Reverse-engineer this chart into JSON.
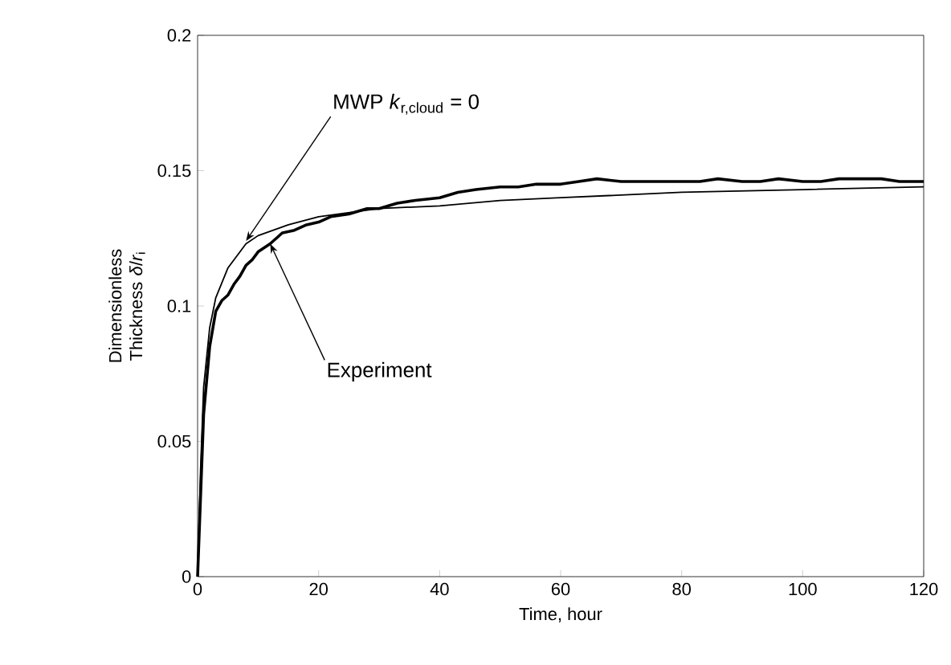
{
  "chart_data": {
    "type": "line",
    "xlabel": "Time, hour",
    "ylabel": "Dimensionless Thickness *δ*/*r*$_{i}$",
    "xlim": [
      0,
      120
    ],
    "ylim": [
      0,
      0.2
    ],
    "xticks": [
      0,
      20,
      40,
      60,
      80,
      100,
      120
    ],
    "yticks": [
      0,
      0.05,
      0.1,
      0.15,
      0.2
    ],
    "grid": false,
    "marker": "none",
    "line_style": "solid",
    "series": [
      {
        "color": "#000000",
        "x": [
          0,
          0.5,
          1,
          2,
          3,
          4,
          5,
          6,
          7,
          8,
          9,
          10,
          12,
          14,
          16,
          18,
          20,
          22,
          25,
          28,
          30,
          33,
          36,
          40,
          43,
          46,
          50,
          53,
          56,
          60,
          63,
          66,
          70,
          73,
          76,
          80,
          83,
          86,
          90,
          93,
          96,
          100,
          103,
          106,
          110,
          113,
          116,
          120
        ],
        "values": [
          0,
          0.03,
          0.06,
          0.085,
          0.098,
          0.102,
          0.104,
          0.108,
          0.111,
          0.115,
          0.117,
          0.12,
          0.123,
          0.127,
          0.128,
          0.13,
          0.131,
          0.133,
          0.134,
          0.136,
          0.136,
          0.138,
          0.139,
          0.14,
          0.142,
          0.143,
          0.144,
          0.144,
          0.145,
          0.145,
          0.146,
          0.147,
          0.146,
          0.146,
          0.146,
          0.146,
          0.146,
          0.147,
          0.146,
          0.146,
          0.147,
          0.146,
          0.146,
          0.147,
          0.147,
          0.147,
          0.146,
          0.146
        ]
      },
      {
        "color": "#000000",
        "x": [
          0,
          0.5,
          1,
          2,
          3,
          5,
          8,
          10,
          15,
          20,
          30,
          40,
          50,
          60,
          80,
          100,
          120
        ],
        "values": [
          0,
          0.04,
          0.07,
          0.092,
          0.103,
          0.114,
          0.123,
          0.126,
          0.13,
          0.133,
          0.136,
          0.137,
          0.139,
          0.14,
          0.142,
          0.143,
          0.144
        ]
      }
    ],
    "annotations": [
      {
        "text": "MWP *k*$_{r,cloud}$ = 0",
        "x": 8,
        "y": 0.124
      },
      {
        "text": "Experiment",
        "x": 12,
        "y": 0.123
      }
    ]
  }
}
